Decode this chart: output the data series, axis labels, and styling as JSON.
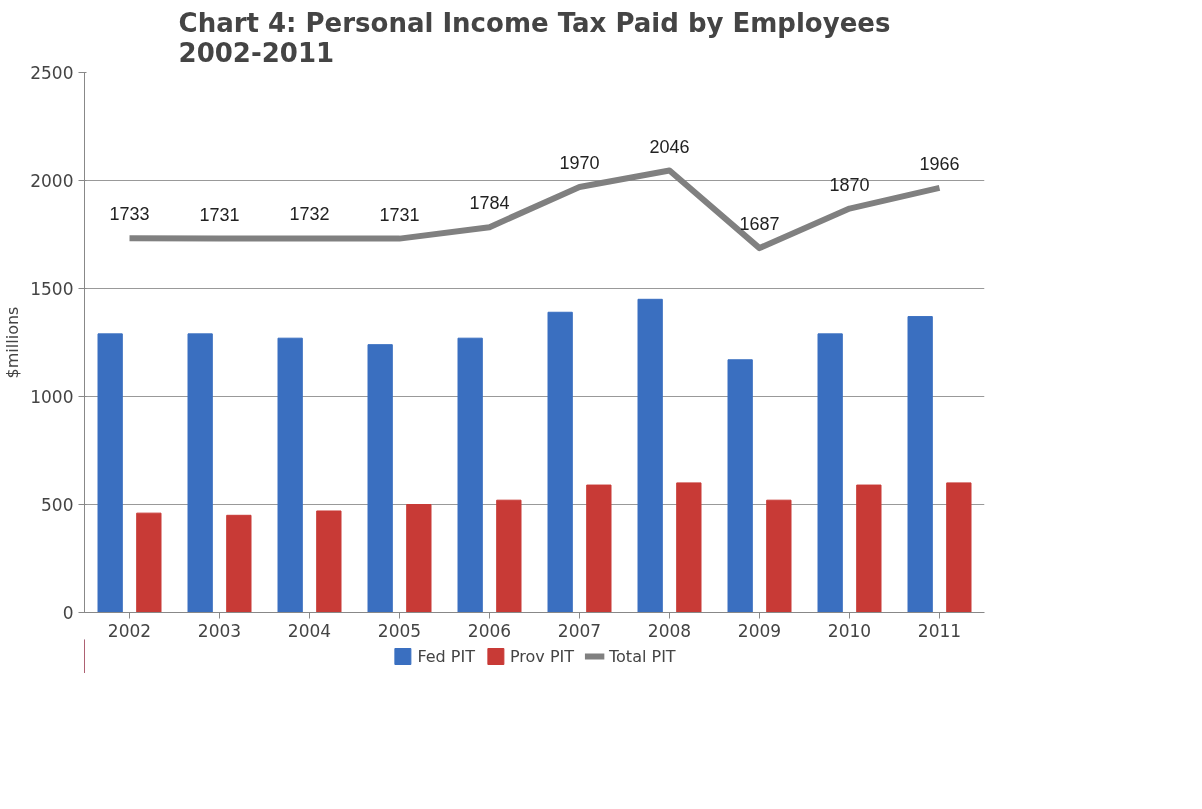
{
  "chart_data": {
    "type": "bar",
    "title": "Chart 4: Personal Income Tax Paid by Employees\n2002-2011",
    "ylabel": "$millions",
    "categories": [
      "2002",
      "2003",
      "2004",
      "2005",
      "2006",
      "2007",
      "2008",
      "2009",
      "2010",
      "2011"
    ],
    "series": [
      {
        "name": "Fed PIT",
        "color": "#3a6fc0",
        "values": [
          1290,
          1290,
          1270,
          1240,
          1270,
          1390,
          1450,
          1170,
          1290,
          1370
        ]
      },
      {
        "name": "Prov PIT",
        "color": "#c83a36",
        "values": [
          460,
          450,
          470,
          500,
          520,
          590,
          600,
          520,
          590,
          600
        ]
      },
      {
        "name": "Total PIT",
        "type": "line",
        "color": "#808080",
        "values": [
          1733,
          1731,
          1732,
          1731,
          1784,
          1970,
          2046,
          1687,
          1870,
          1966
        ],
        "value_labels": [
          "1733",
          "1731",
          "1732",
          "1731",
          "1784",
          "1970",
          "2046",
          "1687",
          "1870",
          "1966"
        ]
      }
    ],
    "ylim": [
      0,
      2500
    ],
    "yticks": [
      0,
      500,
      1000,
      1500,
      2000,
      2500
    ],
    "grid": "y",
    "legend": "bottom"
  }
}
